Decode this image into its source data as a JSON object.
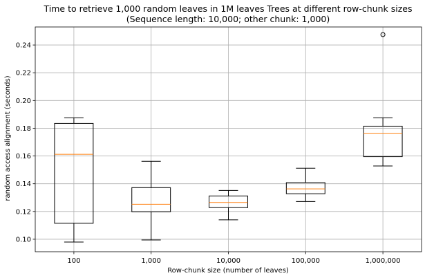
{
  "chart_data": {
    "type": "box",
    "title": "Time to retrieve 1,000 random leaves in 1M leaves Trees at different row-chunk sizes",
    "subtitle": "(Sequence length: 10,000; other chunk: 1,000)",
    "xlabel": "Row-chunk size (number of leaves)",
    "ylabel": "random access alignment (seconds)",
    "ylim": [
      0.091,
      0.253
    ],
    "yticks": [
      0.1,
      0.12,
      0.14,
      0.16,
      0.18,
      0.2,
      0.22,
      0.24
    ],
    "ytick_labels": [
      "0.10",
      "0.12",
      "0.14",
      "0.16",
      "0.18",
      "0.20",
      "0.22",
      "0.24"
    ],
    "grid": true,
    "categories": [
      "100",
      "1,000",
      "10,000",
      "100,000",
      "1,000,000"
    ],
    "boxes": [
      {
        "whisker_low": 0.098,
        "q1": 0.1115,
        "median": 0.1612,
        "q3": 0.1835,
        "whisker_high": 0.1875,
        "outliers": []
      },
      {
        "whisker_low": 0.0995,
        "q1": 0.1198,
        "median": 0.1252,
        "q3": 0.1372,
        "whisker_high": 0.1562,
        "outliers": []
      },
      {
        "whisker_low": 0.114,
        "q1": 0.1228,
        "median": 0.1265,
        "q3": 0.1312,
        "whisker_high": 0.1352,
        "outliers": []
      },
      {
        "whisker_low": 0.1272,
        "q1": 0.1328,
        "median": 0.1363,
        "q3": 0.1408,
        "whisker_high": 0.1512,
        "outliers": []
      },
      {
        "whisker_low": 0.1528,
        "q1": 0.1595,
        "median": 0.1762,
        "q3": 0.1815,
        "whisker_high": 0.1875,
        "outliers": [
          0.2475
        ]
      }
    ],
    "colors": {
      "box": "#000000",
      "median": "#ff7f0e",
      "grid": "#b0b0b0"
    }
  }
}
